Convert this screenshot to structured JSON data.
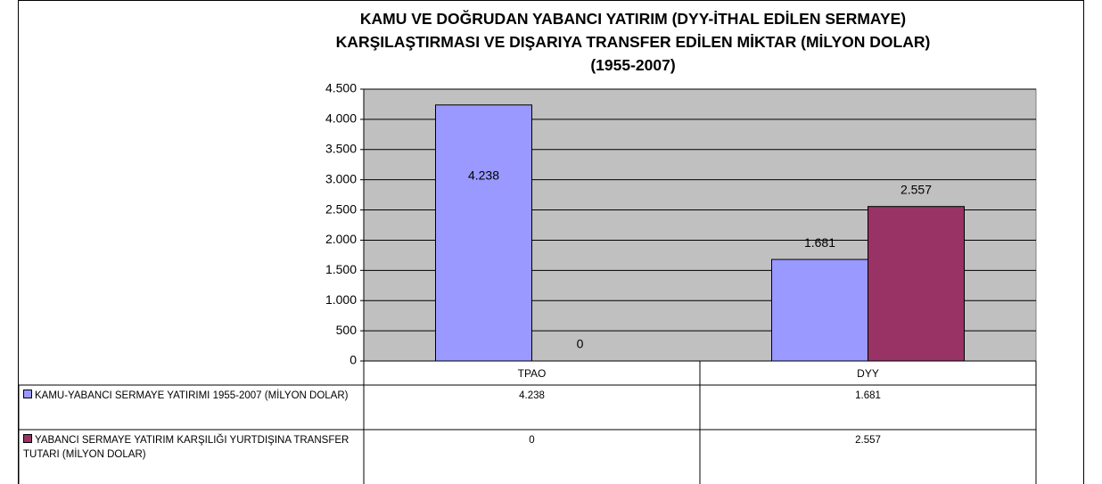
{
  "chart_data": {
    "type": "bar",
    "title": "KAMU VE DOĞRUDAN YABANCI YATIRIM (DYY-İTHAL EDİLEN SERMAYE)\nKARŞILAŞTIRMASI VE DIŞARIYA TRANSFER EDİLEN MİKTAR (MİLYON DOLAR)\n(1955-2007)",
    "categories": [
      "TPAO",
      "DYY"
    ],
    "series": [
      {
        "name": "KAMU-YABANCI SERMAYE YATIRIMI 1955-2007 (MİLYON DOLAR)",
        "color": "#9999ff",
        "values": [
          4238,
          1681
        ],
        "value_labels": [
          "4.238",
          "1.681"
        ]
      },
      {
        "name": "YABANCI SERMAYE YATIRIM KARŞILIĞI YURTDIŞINA TRANSFER TUTARI (MİLYON DOLAR)",
        "color": "#993366",
        "values": [
          0,
          2557
        ],
        "value_labels": [
          "0",
          "2.557"
        ]
      }
    ],
    "ylim": [
      0,
      4500
    ],
    "yticks": [
      0,
      500,
      {
        "value": 1000,
        "label": "1.000"
      },
      {
        "value": 1500,
        "label": "1.500"
      },
      {
        "value": 2000,
        "label": "2.000"
      },
      {
        "value": 2500,
        "label": "2.500"
      },
      {
        "value": 3000,
        "label": "3.000"
      },
      {
        "value": 3500,
        "label": "3.500"
      },
      {
        "value": 4000,
        "label": "4.000"
      },
      {
        "value": 4500,
        "label": "4.500"
      }
    ],
    "grid": true,
    "plot_background": "#c0c0c0",
    "data_table": true
  }
}
